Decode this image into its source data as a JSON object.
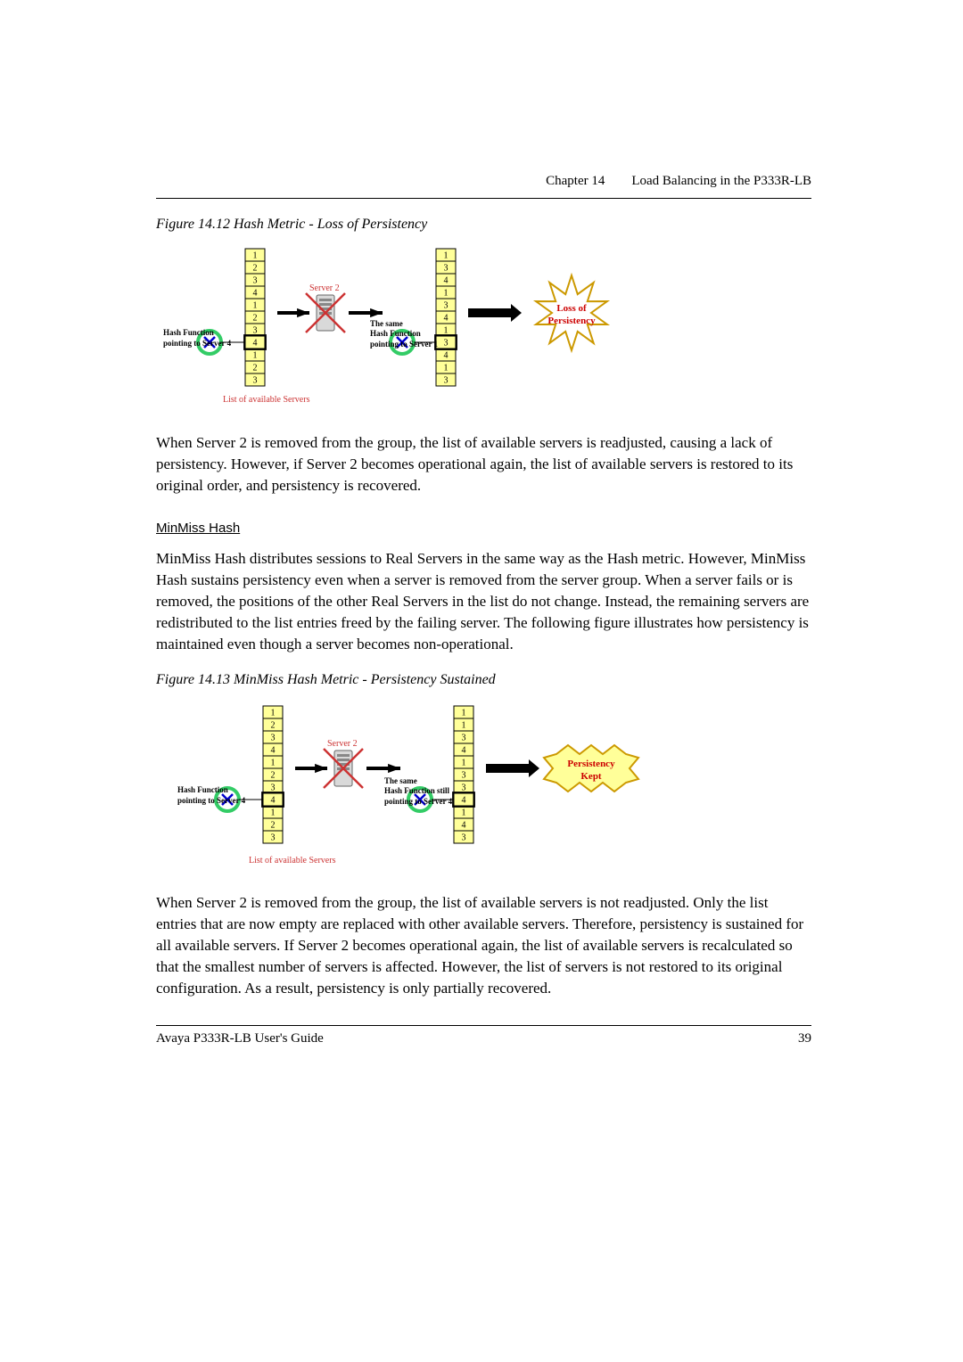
{
  "header": {
    "chapter": "Chapter 14",
    "title": "Load Balancing in the P333R-LB"
  },
  "footer": {
    "guide": "Avaya P333R-LB User's Guide",
    "page": "39"
  },
  "fig12": {
    "caption": "Figure 14.12  Hash Metric - Loss of Persistency",
    "list1": [
      "1",
      "2",
      "3",
      "4",
      "1",
      "2",
      "3",
      "4",
      "1",
      "2",
      "3"
    ],
    "list2": [
      "1",
      "3",
      "4",
      "1",
      "3",
      "4",
      "1",
      "3",
      "4",
      "1",
      "3"
    ],
    "left_label_top": "Hash Function",
    "left_label_bot": "pointing to Server 4",
    "right_label_top": "The same",
    "right_label_mid": "Hash Function",
    "right_label_bot": "pointing to Server 1",
    "server_label": "Server 2",
    "list_caption": "List of available Servers",
    "burst_top": "Loss of",
    "burst_bot": "Persistency",
    "colors": {
      "cell_fill": "#ffff99",
      "cell_stroke": "#000000",
      "server_fill": "#d9d9d9",
      "router_ring": "#33cc66",
      "router_fill": "#ffffff",
      "router_x": "#0000cc",
      "list_caption_color": "#cc3333",
      "burst_stroke": "#cc9900",
      "burst_text": "#cc0000",
      "arrow_thick": "#000000"
    }
  },
  "para1": "When Server 2 is removed from the group, the list of available servers is readjusted, causing a lack of persistency. However, if Server 2 becomes operational again, the list of available servers is restored to its original order, and persistency is recovered.",
  "subheading": "MinMiss Hash",
  "para2": "MinMiss Hash distributes sessions to Real Servers in the same way as the Hash metric. However, MinMiss Hash sustains persistency even when a server is removed from the server group. When a server fails or is removed, the positions of the other Real Servers in the list do not change. Instead, the remaining servers are redistributed to the list entries freed by the failing server. The following figure illustrates how persistency is maintained even though a server becomes non-operational.",
  "fig13": {
    "caption": "Figure 14.13  MinMiss Hash Metric - Persistency Sustained",
    "list1": [
      "1",
      "2",
      "3",
      "4",
      "1",
      "2",
      "3",
      "4",
      "1",
      "2",
      "3"
    ],
    "list2": [
      "1",
      "1",
      "3",
      "4",
      "1",
      "3",
      "3",
      "4",
      "1",
      "4",
      "3"
    ],
    "left_label_top": "Hash Function",
    "left_label_bot": "pointing to Server 4",
    "right_label_top": "The same",
    "right_label_mid": "Hash Function still",
    "right_label_bot": "pointing to Server 4",
    "server_label": "Server 2",
    "list_caption": "List of available Servers",
    "burst_top": "Persistency",
    "burst_bot": "Kept",
    "colors": {
      "cell_fill": "#ffff99",
      "cell_stroke": "#000000",
      "server_fill": "#d9d9d9",
      "router_ring": "#33cc66",
      "router_fill": "#ffffff",
      "router_x": "#0000cc",
      "list_caption_color": "#cc3333",
      "burst_stroke": "#cc9900",
      "burst_fill": "#ffff99",
      "burst_text": "#cc0000",
      "arrow_thick": "#000000"
    }
  },
  "para3": "When Server 2 is removed from the group, the list of available servers is not readjusted. Only the list entries that are now empty are replaced with other available servers. Therefore, persistency is sustained for all available servers. If Server 2 becomes operational again, the list of available servers is recalculated so that the smallest number of servers is affected. However, the list of servers is not restored to its original configuration. As a result, persistency is only partially recovered."
}
